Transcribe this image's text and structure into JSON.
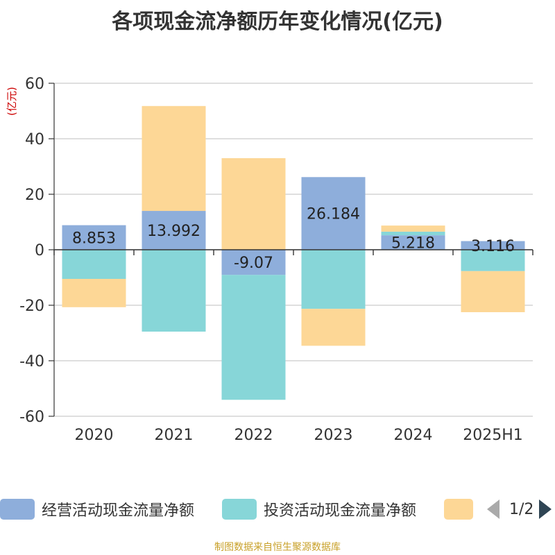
{
  "chart_data": {
    "type": "bar",
    "stacked": true,
    "title": "各项现金流净额历年变化情况(亿元)",
    "ylabel": "(亿元)",
    "categories": [
      "2020",
      "2021",
      "2022",
      "2023",
      "2024",
      "2025H1"
    ],
    "ylim": [
      -60,
      60
    ],
    "yticks": [
      60,
      40,
      20,
      0,
      -20,
      -40,
      -60
    ],
    "grid": true,
    "legend_position": "bottom",
    "series": [
      {
        "name": "经营活动现金流量净额",
        "color": "#8eaedb",
        "values": [
          8.853,
          13.992,
          -9.07,
          26.184,
          5.218,
          3.116
        ],
        "labels": [
          "8.853",
          "13.992",
          "-9.07",
          "26.184",
          "5.218",
          "3.116"
        ]
      },
      {
        "name": "投资活动现金流量净额",
        "color": "#87d6d8",
        "values": [
          -10.5,
          -29.5,
          -45,
          -21.3,
          1.3,
          -7.7
        ]
      },
      {
        "name": "",
        "color": "#fdd796",
        "values": [
          -10.2,
          37.8,
          33,
          -13.3,
          2.2,
          -14.8
        ]
      }
    ]
  },
  "legend": {
    "items": [
      {
        "label": "经营活动现金流量净额",
        "color": "#8eaedb"
      },
      {
        "label": "投资活动现金流量净额",
        "color": "#87d6d8"
      },
      {
        "label": "",
        "color": "#fdd796"
      }
    ],
    "page_indicator": "1/2"
  },
  "source_note": "制图数据来自恒生聚源数据库"
}
